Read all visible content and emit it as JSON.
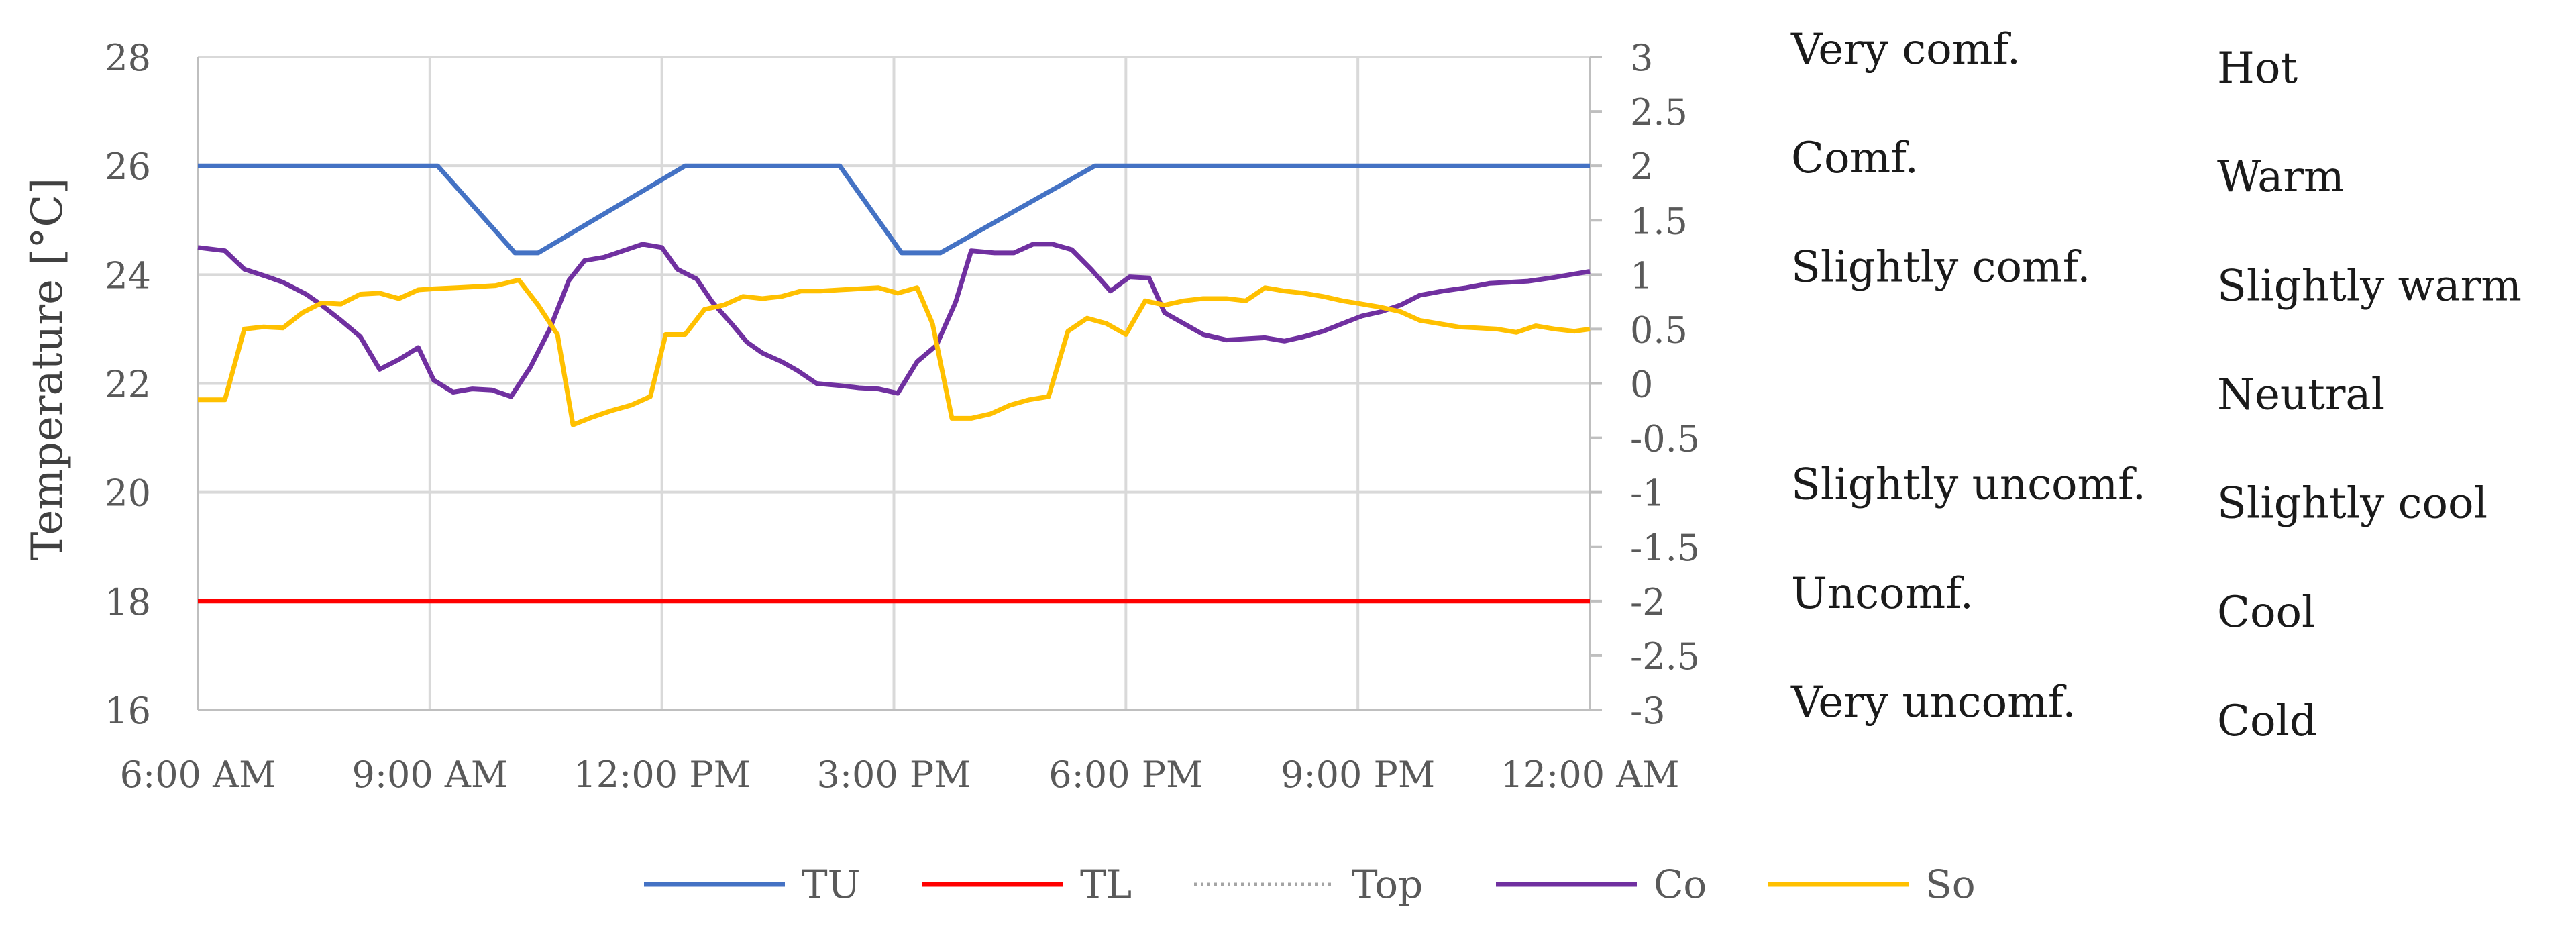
{
  "chart_data": {
    "type": "line",
    "ylabel": "Temperature [°C]",
    "ylim": [
      16,
      28
    ],
    "y_ticks": [
      "16",
      "18",
      "20",
      "22",
      "24",
      "26",
      "28"
    ],
    "y2lim": [
      -3,
      3
    ],
    "y2_ticks": [
      "-3",
      "-2.5",
      "-2",
      "-1.5",
      "-1",
      "-0.5",
      "0",
      "0.5",
      "1",
      "1.5",
      "2",
      "2.5",
      "3"
    ],
    "x_unit": "hours from 6:00 AM",
    "x_ticks": [
      "6:00 AM",
      "9:00 AM",
      "12:00 PM",
      "3:00 PM",
      "6:00 PM",
      "9:00 PM",
      "12:00 AM"
    ],
    "grid": true,
    "legend_position": "bottom",
    "series": [
      {
        "name": "TU",
        "axis": "left",
        "color": "#4472C4",
        "style": "solid",
        "points": [
          [
            0,
            26
          ],
          [
            3.1,
            26
          ],
          [
            4.1,
            24.4
          ],
          [
            4.4,
            24.4
          ],
          [
            6.3,
            26
          ],
          [
            8.3,
            26
          ],
          [
            9.1,
            24.4
          ],
          [
            9.6,
            24.4
          ],
          [
            11.6,
            26
          ],
          [
            18,
            26
          ]
        ]
      },
      {
        "name": "TL",
        "axis": "left",
        "color": "#FF0000",
        "style": "solid",
        "points": [
          [
            0,
            18
          ],
          [
            18,
            18
          ]
        ]
      },
      {
        "name": "Top",
        "axis": "left",
        "color": "#A5A5A5",
        "style": "dotted",
        "points": []
      },
      {
        "name": "Co",
        "axis": "right",
        "color": "#7030A0",
        "style": "solid",
        "points": [
          [
            0,
            1.25
          ],
          [
            0.35,
            1.22
          ],
          [
            0.6,
            1.05
          ],
          [
            0.9,
            0.98
          ],
          [
            1.1,
            0.93
          ],
          [
            1.4,
            0.82
          ],
          [
            1.6,
            0.72
          ],
          [
            1.85,
            0.58
          ],
          [
            2.1,
            0.43
          ],
          [
            2.35,
            0.13
          ],
          [
            2.6,
            0.22
          ],
          [
            2.85,
            0.33
          ],
          [
            3.05,
            0.03
          ],
          [
            3.3,
            -0.08
          ],
          [
            3.55,
            -0.05
          ],
          [
            3.8,
            -0.06
          ],
          [
            4.05,
            -0.12
          ],
          [
            4.3,
            0.15
          ],
          [
            4.55,
            0.5
          ],
          [
            4.8,
            0.95
          ],
          [
            5.0,
            1.13
          ],
          [
            5.25,
            1.16
          ],
          [
            5.5,
            1.22
          ],
          [
            5.75,
            1.28
          ],
          [
            6.0,
            1.25
          ],
          [
            6.2,
            1.05
          ],
          [
            6.45,
            0.96
          ],
          [
            6.65,
            0.75
          ],
          [
            6.9,
            0.55
          ],
          [
            7.1,
            0.38
          ],
          [
            7.3,
            0.28
          ],
          [
            7.55,
            0.2
          ],
          [
            7.75,
            0.12
          ],
          [
            8.0,
            0.0
          ],
          [
            8.3,
            -0.02
          ],
          [
            8.55,
            -0.04
          ],
          [
            8.8,
            -0.05
          ],
          [
            9.05,
            -0.09
          ],
          [
            9.3,
            0.2
          ],
          [
            9.55,
            0.35
          ],
          [
            9.8,
            0.75
          ],
          [
            10.0,
            1.22
          ],
          [
            10.3,
            1.2
          ],
          [
            10.55,
            1.2
          ],
          [
            10.8,
            1.28
          ],
          [
            11.05,
            1.28
          ],
          [
            11.3,
            1.23
          ],
          [
            11.55,
            1.05
          ],
          [
            11.8,
            0.85
          ],
          [
            12.05,
            0.98
          ],
          [
            12.3,
            0.97
          ],
          [
            12.5,
            0.65
          ],
          [
            12.8,
            0.53
          ],
          [
            13.0,
            0.45
          ],
          [
            13.3,
            0.4
          ],
          [
            13.55,
            0.41
          ],
          [
            13.8,
            0.42
          ],
          [
            14.05,
            0.39
          ],
          [
            14.3,
            0.43
          ],
          [
            14.55,
            0.48
          ],
          [
            14.8,
            0.55
          ],
          [
            15.05,
            0.62
          ],
          [
            15.3,
            0.66
          ],
          [
            15.55,
            0.72
          ],
          [
            15.8,
            0.81
          ],
          [
            16.1,
            0.85
          ],
          [
            16.4,
            0.88
          ],
          [
            16.7,
            0.92
          ],
          [
            16.95,
            0.93
          ],
          [
            17.2,
            0.94
          ],
          [
            17.5,
            0.97
          ],
          [
            17.75,
            1.0
          ],
          [
            18,
            1.03
          ]
        ]
      },
      {
        "name": "So",
        "axis": "right",
        "color": "#FFC000",
        "style": "solid",
        "points": [
          [
            0,
            -0.15
          ],
          [
            0.35,
            -0.15
          ],
          [
            0.6,
            0.5
          ],
          [
            0.85,
            0.52
          ],
          [
            1.1,
            0.51
          ],
          [
            1.35,
            0.65
          ],
          [
            1.6,
            0.74
          ],
          [
            1.85,
            0.73
          ],
          [
            2.1,
            0.82
          ],
          [
            2.35,
            0.83
          ],
          [
            2.6,
            0.78
          ],
          [
            2.85,
            0.86
          ],
          [
            3.05,
            0.87
          ],
          [
            3.35,
            0.88
          ],
          [
            3.6,
            0.89
          ],
          [
            3.85,
            0.9
          ],
          [
            4.15,
            0.95
          ],
          [
            4.4,
            0.72
          ],
          [
            4.65,
            0.45
          ],
          [
            4.85,
            -0.38
          ],
          [
            5.1,
            -0.31
          ],
          [
            5.35,
            -0.25
          ],
          [
            5.6,
            -0.2
          ],
          [
            5.85,
            -0.12
          ],
          [
            6.05,
            0.45
          ],
          [
            6.3,
            0.45
          ],
          [
            6.55,
            0.68
          ],
          [
            6.8,
            0.72
          ],
          [
            7.05,
            0.8
          ],
          [
            7.3,
            0.78
          ],
          [
            7.55,
            0.8
          ],
          [
            7.8,
            0.85
          ],
          [
            8.05,
            0.85
          ],
          [
            8.3,
            0.86
          ],
          [
            8.55,
            0.87
          ],
          [
            8.8,
            0.88
          ],
          [
            9.05,
            0.83
          ],
          [
            9.3,
            0.88
          ],
          [
            9.5,
            0.55
          ],
          [
            9.75,
            -0.32
          ],
          [
            10.0,
            -0.32
          ],
          [
            10.25,
            -0.28
          ],
          [
            10.5,
            -0.2
          ],
          [
            10.75,
            -0.15
          ],
          [
            11.0,
            -0.12
          ],
          [
            11.25,
            0.48
          ],
          [
            11.5,
            0.6
          ],
          [
            11.75,
            0.55
          ],
          [
            12.0,
            0.45
          ],
          [
            12.25,
            0.76
          ],
          [
            12.5,
            0.72
          ],
          [
            12.75,
            0.76
          ],
          [
            13.0,
            0.78
          ],
          [
            13.3,
            0.78
          ],
          [
            13.55,
            0.76
          ],
          [
            13.8,
            0.88
          ],
          [
            14.05,
            0.85
          ],
          [
            14.3,
            0.83
          ],
          [
            14.55,
            0.8
          ],
          [
            14.8,
            0.76
          ],
          [
            15.05,
            0.73
          ],
          [
            15.3,
            0.7
          ],
          [
            15.55,
            0.66
          ],
          [
            15.8,
            0.58
          ],
          [
            16.05,
            0.55
          ],
          [
            16.3,
            0.52
          ],
          [
            16.55,
            0.51
          ],
          [
            16.8,
            0.5
          ],
          [
            17.05,
            0.47
          ],
          [
            17.3,
            0.53
          ],
          [
            17.55,
            0.5
          ],
          [
            17.8,
            0.48
          ],
          [
            18,
            0.5
          ]
        ]
      }
    ]
  },
  "scale_labels": {
    "comfort": [
      {
        "level": 3,
        "text": "Very comf."
      },
      {
        "level": 2,
        "text": "Comf."
      },
      {
        "level": 1,
        "text": "Slightly comf."
      },
      {
        "level": -1,
        "text": "Slightly uncomf."
      },
      {
        "level": -2,
        "text": "Uncomf."
      },
      {
        "level": -3,
        "text": "Very uncomf."
      }
    ],
    "sensation": [
      {
        "level": 3,
        "text": "Hot"
      },
      {
        "level": 2,
        "text": "Warm"
      },
      {
        "level": 1,
        "text": "Slightly warm"
      },
      {
        "level": 0,
        "text": "Neutral"
      },
      {
        "level": -1,
        "text": "Slightly cool"
      },
      {
        "level": -2,
        "text": "Cool"
      },
      {
        "level": -3,
        "text": "Cold"
      }
    ]
  }
}
